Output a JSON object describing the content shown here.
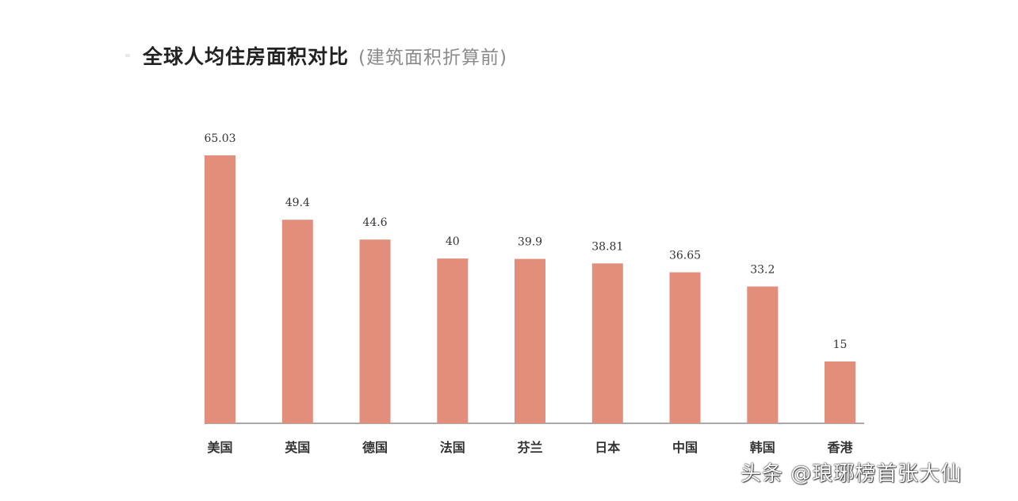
{
  "chart_data": {
    "type": "bar",
    "title": "全球人均住房面积对比",
    "subtitle": "(建筑面积折算前)",
    "categories": [
      "美国",
      "英国",
      "德国",
      "法国",
      "芬兰",
      "日本",
      "中国",
      "韩国",
      "香港"
    ],
    "values": [
      65.03,
      49.4,
      44.6,
      40,
      39.9,
      38.81,
      36.65,
      33.2,
      15
    ],
    "value_labels": [
      "65.03",
      "49.4",
      "44.6",
      "40",
      "39.9",
      "38.81",
      "36.65",
      "33.2",
      "15"
    ],
    "ylim": [
      0,
      70
    ],
    "grid": false,
    "legend": "none",
    "xlabel": "",
    "ylabel": "",
    "bar_color": "#e38e7b",
    "axis_color": "#777777"
  },
  "watermark": "头条 @琅琊榜首张大仙"
}
